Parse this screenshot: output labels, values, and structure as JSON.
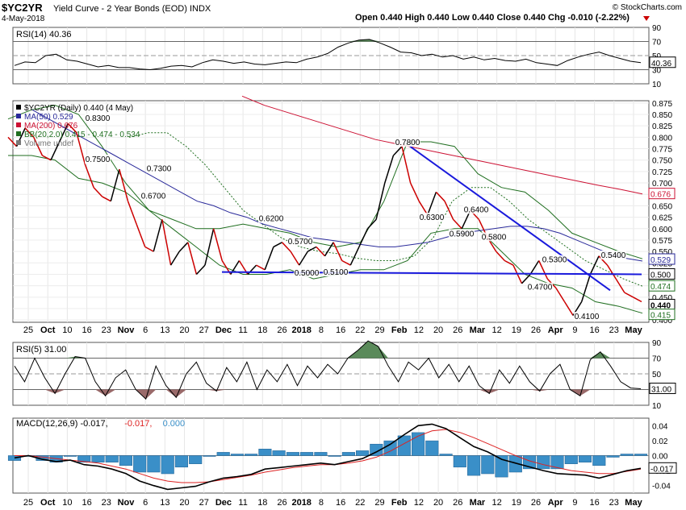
{
  "header": {
    "symbol": "$YC2YR",
    "description": "Yield Curve - 2 Year Bonds (EOD)",
    "exchange": "INDX",
    "date": "4-May-2018",
    "quote": "Open 0.440  High 0.440  Low 0.440  Close 0.440  Chg -0.010 (-2.22%)",
    "copyright": "© StockCharts.com"
  },
  "colors": {
    "price": "#000000",
    "down": "#cc0000",
    "ma50": "#2a2a9a",
    "ma200": "#cc1133",
    "bb": "#1f6e1f",
    "trend": "#1a1adc",
    "rsi_over": "#5a8a5a",
    "rsi_under": "#9a6a6a",
    "hist": "#3a8fc8",
    "macd_signal": "#dd2222"
  },
  "chart_data": [
    {
      "type": "line",
      "panel": "RSI(14)",
      "legend": "RSI(14) 40.36",
      "current_label": "40.36",
      "ylim": [
        10,
        90
      ],
      "y_ticks": [
        "90",
        "70",
        "50",
        "30",
        "10"
      ],
      "levels": [
        70,
        50,
        30
      ],
      "values": [
        36,
        41,
        40,
        50,
        52,
        44,
        42,
        38,
        34,
        36,
        33,
        33,
        31,
        30,
        32,
        35,
        36,
        34,
        40,
        44,
        42,
        39,
        41,
        38,
        37,
        39,
        41,
        40,
        45,
        48,
        53,
        62,
        68,
        72,
        73,
        68,
        62,
        55,
        54,
        50,
        52,
        48,
        50,
        45,
        48,
        44,
        46,
        43,
        42,
        45,
        40,
        38,
        36,
        43,
        48,
        52,
        55,
        50,
        46,
        42,
        40
      ]
    },
    {
      "type": "line",
      "panel": "price",
      "legend": [
        {
          "label": "$YC2YR (Daily) 0.440 (4 May)",
          "color": "#000000"
        },
        {
          "label": "MA(50) 0.529",
          "color": "#2a2a9a"
        },
        {
          "label": "MA(200) 0.676",
          "color": "#cc1133"
        },
        {
          "label": "BB(20,2.0) 0.415 - 0.474 - 0.534",
          "color": "#1f6e1f"
        },
        {
          "label": "Volume undef",
          "color": "#777777"
        }
      ],
      "ylim": [
        0.395,
        0.88
      ],
      "y_ticks": [
        "0.875",
        "0.850",
        "0.825",
        "0.800",
        "0.775",
        "0.750",
        "0.725",
        "0.700",
        "0.675",
        "0.650",
        "0.625",
        "0.600",
        "0.575",
        "0.550",
        "0.525",
        "0.500",
        "0.475",
        "0.450",
        "0.425",
        "0.400"
      ],
      "x_ticks": [
        "25",
        "Oct",
        "10",
        "16",
        "23",
        "Nov",
        "6",
        "13",
        "20",
        "27",
        "Dec",
        "11",
        "18",
        "26",
        "2018",
        "8",
        "16",
        "22",
        "29",
        "Feb",
        "12",
        "20",
        "26",
        "Mar",
        "12",
        "19",
        "26",
        "Apr",
        "9",
        "16",
        "23",
        "May"
      ],
      "price": [
        0.8,
        0.78,
        0.82,
        0.8,
        0.76,
        0.75,
        0.79,
        0.83,
        0.81,
        0.74,
        0.69,
        0.67,
        0.66,
        0.73,
        0.66,
        0.61,
        0.56,
        0.55,
        0.62,
        0.52,
        0.55,
        0.57,
        0.5,
        0.52,
        0.6,
        0.53,
        0.5,
        0.53,
        0.5,
        0.52,
        0.51,
        0.56,
        0.57,
        0.55,
        0.52,
        0.55,
        0.56,
        0.54,
        0.57,
        0.53,
        0.52,
        0.56,
        0.6,
        0.62,
        0.7,
        0.76,
        0.78,
        0.7,
        0.66,
        0.63,
        0.68,
        0.66,
        0.62,
        0.6,
        0.64,
        0.62,
        0.58,
        0.55,
        0.53,
        0.52,
        0.48,
        0.5,
        0.53,
        0.49,
        0.47,
        0.44,
        0.41,
        0.44,
        0.5,
        0.54,
        0.52,
        0.49,
        0.46,
        0.45,
        0.44
      ],
      "ma50": [
        0.86,
        0.84,
        0.82,
        0.8,
        0.78,
        0.76,
        0.74,
        0.72,
        0.7,
        0.68,
        0.66,
        0.65,
        0.635,
        0.625,
        0.61,
        0.6,
        0.59,
        0.58,
        0.575,
        0.57,
        0.565,
        0.56,
        0.56,
        0.565,
        0.57,
        0.58,
        0.59,
        0.595,
        0.6,
        0.605,
        0.605,
        0.6,
        0.59,
        0.575,
        0.56,
        0.545,
        0.535,
        0.529
      ],
      "ma200": [
        0.89,
        0.87,
        0.855,
        0.84,
        0.825,
        0.81,
        0.795,
        0.785,
        0.775,
        0.765,
        0.755,
        0.745,
        0.735,
        0.725,
        0.715,
        0.705,
        0.695,
        0.686,
        0.676
      ],
      "bb_upper": [
        0.84,
        0.86,
        0.87,
        0.85,
        0.78,
        0.7,
        0.64,
        0.62,
        0.6,
        0.6,
        0.61,
        0.6,
        0.59,
        0.57,
        0.56,
        0.57,
        0.66,
        0.79,
        0.79,
        0.78,
        0.72,
        0.69,
        0.68,
        0.64,
        0.59,
        0.57,
        0.55,
        0.534
      ],
      "bb_mid": [
        0.8,
        0.81,
        0.81,
        0.78,
        0.74,
        0.69,
        0.64,
        0.61,
        0.58,
        0.56,
        0.55,
        0.545,
        0.535,
        0.53,
        0.53,
        0.54,
        0.58,
        0.66,
        0.69,
        0.69,
        0.66,
        0.62,
        0.59,
        0.56,
        0.53,
        0.51,
        0.49,
        0.474
      ],
      "bb_lower": [
        0.76,
        0.76,
        0.75,
        0.71,
        0.7,
        0.68,
        0.64,
        0.6,
        0.56,
        0.52,
        0.5,
        0.5,
        0.51,
        0.49,
        0.5,
        0.51,
        0.51,
        0.53,
        0.59,
        0.6,
        0.6,
        0.55,
        0.5,
        0.48,
        0.47,
        0.44,
        0.43,
        0.415
      ],
      "annotations": [
        "0.8300",
        "0.7500",
        "0.7300",
        "0.6700",
        "0.6200",
        "0.5700",
        "0.5000",
        "0.5100",
        "0.7800",
        "0.6300",
        "0.5900",
        "0.6400",
        "0.5800",
        "0.5300",
        "0.4700",
        "0.4100",
        "0.5400"
      ],
      "side_labels": [
        "0.676",
        "0.529",
        "0.500",
        "0.474",
        "0.440",
        "0.415"
      ]
    },
    {
      "type": "line",
      "panel": "RSI(5)",
      "legend": "RSI(5) 31.00",
      "current_label": "31.00",
      "ylim": [
        10,
        90
      ],
      "y_ticks": [
        "90",
        "70",
        "50",
        "30",
        "10"
      ],
      "levels": [
        70,
        50,
        30
      ],
      "values": [
        60,
        40,
        70,
        45,
        25,
        50,
        72,
        70,
        40,
        22,
        45,
        55,
        30,
        18,
        60,
        35,
        20,
        50,
        65,
        38,
        28,
        58,
        40,
        65,
        30,
        55,
        40,
        62,
        35,
        60,
        45,
        62,
        50,
        70,
        80,
        92,
        85,
        60,
        40,
        65,
        55,
        70,
        45,
        62,
        40,
        60,
        35,
        25,
        55,
        38,
        60,
        40,
        28,
        50,
        62,
        30,
        22,
        68,
        78,
        60,
        40,
        32,
        31
      ]
    },
    {
      "type": "line",
      "panel": "MACD",
      "legend": [
        {
          "label": "MACD(12,26,9) -0.017",
          "color": "#000000"
        },
        {
          "label": "-0.017",
          "color": "#dd2222"
        },
        {
          "label": "0.000",
          "color": "#3a8fc8"
        }
      ],
      "current_label": "-0.017",
      "ylim": [
        -0.05,
        0.05
      ],
      "y_ticks": [
        "0.04",
        "0.02",
        "0.00",
        "-0.02",
        "-0.04"
      ],
      "macd": [
        -0.003,
        0.0,
        -0.005,
        -0.008,
        -0.006,
        -0.012,
        -0.014,
        -0.018,
        -0.024,
        -0.034,
        -0.04,
        -0.045,
        -0.043,
        -0.041,
        -0.035,
        -0.03,
        -0.028,
        -0.025,
        -0.018,
        -0.016,
        -0.014,
        -0.012,
        -0.01,
        -0.012,
        -0.008,
        -0.004,
        0.005,
        0.015,
        0.028,
        0.04,
        0.042,
        0.036,
        0.024,
        0.012,
        0.005,
        -0.005,
        -0.01,
        -0.015,
        -0.02,
        -0.024,
        -0.025,
        -0.026,
        -0.03,
        -0.025,
        -0.02,
        -0.017
      ],
      "signal": [
        0.0,
        0.0,
        -0.002,
        -0.004,
        -0.006,
        -0.008,
        -0.01,
        -0.014,
        -0.018,
        -0.024,
        -0.03,
        -0.034,
        -0.036,
        -0.036,
        -0.035,
        -0.032,
        -0.029,
        -0.026,
        -0.022,
        -0.019,
        -0.016,
        -0.014,
        -0.012,
        -0.012,
        -0.01,
        -0.007,
        -0.002,
        0.006,
        0.016,
        0.026,
        0.033,
        0.035,
        0.031,
        0.024,
        0.016,
        0.008,
        0.0,
        -0.007,
        -0.012,
        -0.016,
        -0.02,
        -0.022,
        -0.024,
        -0.024,
        -0.021,
        -0.018
      ]
    }
  ]
}
